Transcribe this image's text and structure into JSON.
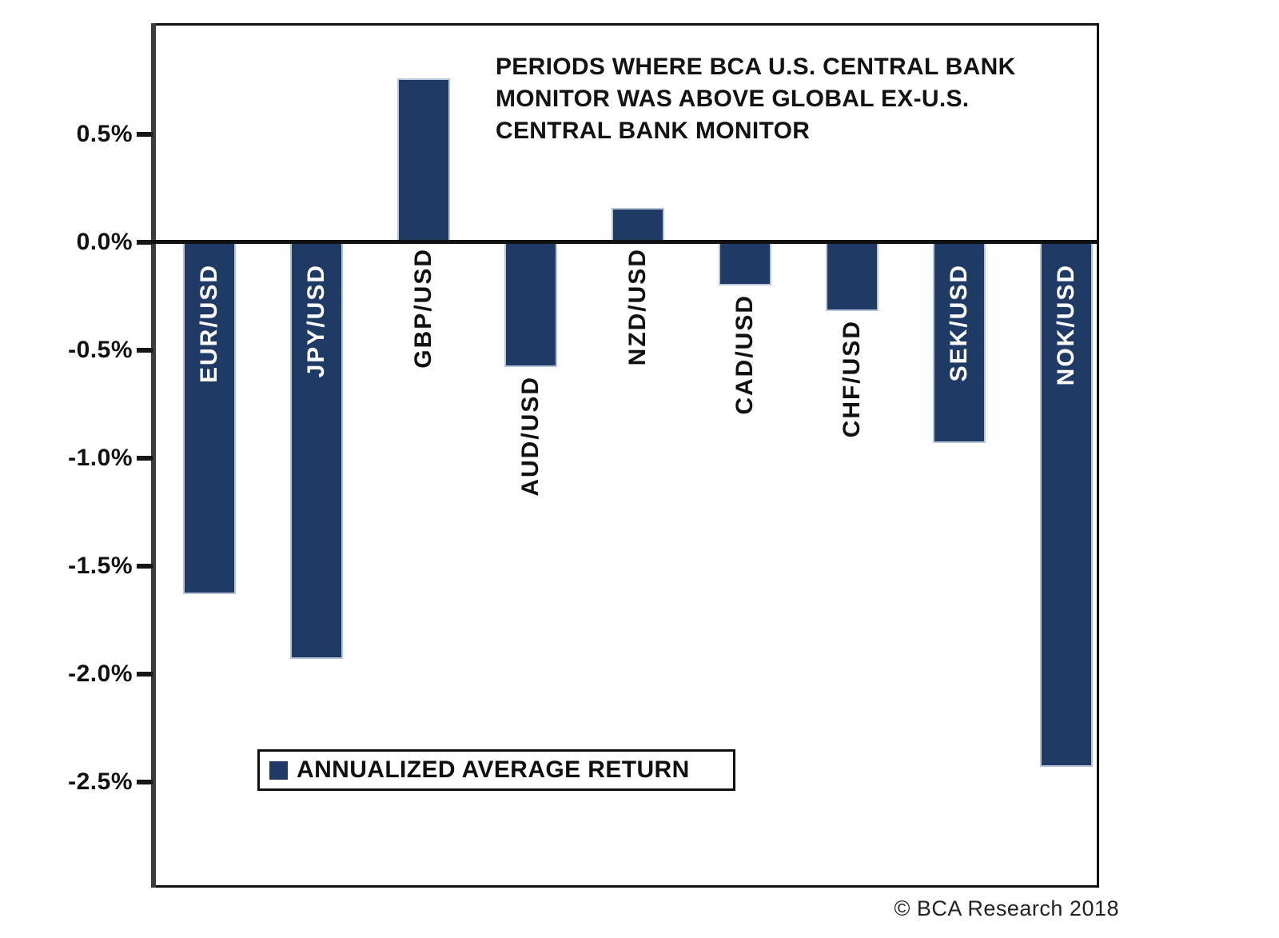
{
  "chart": {
    "title_lines": [
      "PERIODS WHERE BCA U.S. CENTRAL BANK",
      "MONITOR WAS ABOVE GLOBAL EX-U.S.",
      "CENTRAL BANK MONITOR"
    ],
    "legend_label": "ANNUALIZED AVERAGE RETURN",
    "credit": "© BCA Research 2018",
    "y_tick_labels": [
      "0.5%",
      "0.0%",
      "-0.5%",
      "-1.0%",
      "-1.5%",
      "-2.0%",
      "-2.5%"
    ]
  },
  "colors": {
    "bar": "#1f3a64",
    "bar_highlight": "#b9c5da",
    "label_inside": "#ffffff",
    "label_outside": "#111111",
    "axis": "#161616"
  },
  "chart_data": {
    "type": "bar",
    "title": "PERIODS WHERE BCA U.S. CENTRAL BANK MONITOR WAS ABOVE GLOBAL EX-U.S. CENTRAL BANK MONITOR",
    "categories": [
      "EUR/USD",
      "JPY/USD",
      "GBP/USD",
      "AUD/USD",
      "NZD/USD",
      "CAD/USD",
      "CHF/USD",
      "SEK/USD",
      "NOK/USD"
    ],
    "series": [
      {
        "name": "ANNUALIZED AVERAGE RETURN",
        "values": [
          -1.63,
          -1.93,
          0.75,
          -0.58,
          0.15,
          -0.2,
          -0.32,
          -0.93,
          -2.43
        ]
      }
    ],
    "unit": "%",
    "xlabel": "",
    "ylabel": "",
    "ylim": [
      -3.0,
      1.0
    ],
    "yticks": [
      0.5,
      0.0,
      -0.5,
      -1.0,
      -1.5,
      -2.0,
      -2.5
    ],
    "grid": false,
    "legend_position": "lower-left-inside",
    "bar_label_placement": [
      "inside-white",
      "inside-white",
      "outside-black",
      "outside-black",
      "outside-black",
      "outside-black",
      "outside-black",
      "inside-white",
      "inside-white"
    ],
    "annotations": [
      "© BCA Research 2018"
    ]
  }
}
